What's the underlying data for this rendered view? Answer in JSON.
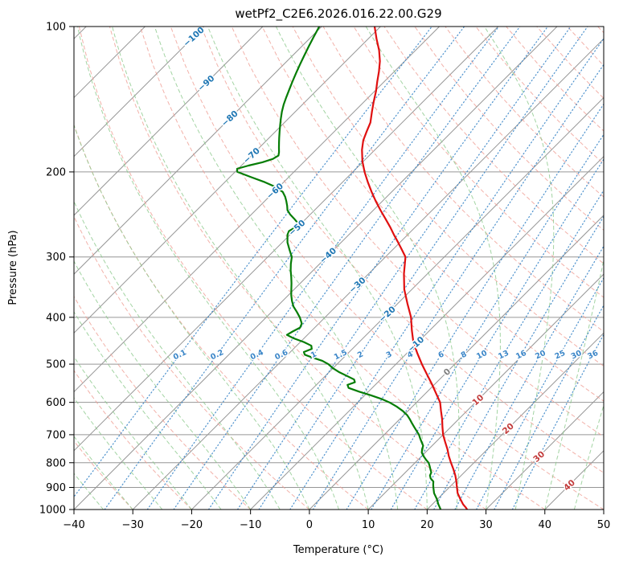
{
  "title": "wetPf2_C2E6.2026.016.22.00.G29",
  "axes": {
    "xlabel": "Temperature (°C)",
    "ylabel": "Pressure (hPa)",
    "x_ticks": [
      {
        "v": -40,
        "label": "−40"
      },
      {
        "v": -30,
        "label": "−30"
      },
      {
        "v": -20,
        "label": "−20"
      },
      {
        "v": -10,
        "label": "−10"
      },
      {
        "v": 0,
        "label": "0"
      },
      {
        "v": 10,
        "label": "10"
      },
      {
        "v": 20,
        "label": "20"
      },
      {
        "v": 30,
        "label": "30"
      },
      {
        "v": 40,
        "label": "40"
      },
      {
        "v": 50,
        "label": "50"
      }
    ],
    "p_ticks": [
      {
        "v": 100,
        "label": "100"
      },
      {
        "v": 200,
        "label": "200"
      },
      {
        "v": 300,
        "label": "300"
      },
      {
        "v": 400,
        "label": "400"
      },
      {
        "v": 500,
        "label": "500"
      },
      {
        "v": 600,
        "label": "600"
      },
      {
        "v": 700,
        "label": "700"
      },
      {
        "v": 800,
        "label": "800"
      },
      {
        "v": 900,
        "label": "900"
      },
      {
        "v": 1000,
        "label": "1000"
      }
    ]
  },
  "chart_data": {
    "type": "line",
    "subtype": "skewT-logP-sounding",
    "title": "wetPf2_C2E6.2026.016.22.00.G29",
    "xlabel": "Temperature (°C)",
    "ylabel": "Pressure (hPa)",
    "xlim": [
      -40,
      50
    ],
    "pressure_lim": [
      1000,
      100
    ],
    "pressure_scale": "log",
    "skew_degrees": 45,
    "series": [
      {
        "name": "temperature",
        "color": "#e01010",
        "style": "solid",
        "points_p_hPa_T_C": [
          [
            1000,
            26.8
          ],
          [
            990,
            26.2
          ],
          [
            975,
            25.2
          ],
          [
            950,
            23.8
          ],
          [
            925,
            22.4
          ],
          [
            900,
            21.3
          ],
          [
            875,
            20.2
          ],
          [
            850,
            19.0
          ],
          [
            825,
            17.6
          ],
          [
            800,
            16.1
          ],
          [
            775,
            14.6
          ],
          [
            750,
            13.2
          ],
          [
            725,
            11.6
          ],
          [
            700,
            10.0
          ],
          [
            675,
            8.6
          ],
          [
            650,
            7.2
          ],
          [
            625,
            5.6
          ],
          [
            600,
            4.0
          ],
          [
            575,
            1.8
          ],
          [
            550,
            -0.5
          ],
          [
            525,
            -3.0
          ],
          [
            500,
            -5.6
          ],
          [
            475,
            -8.2
          ],
          [
            450,
            -10.8
          ],
          [
            425,
            -13.1
          ],
          [
            400,
            -15.4
          ],
          [
            375,
            -18.3
          ],
          [
            350,
            -21.3
          ],
          [
            325,
            -24.0
          ],
          [
            300,
            -26.6
          ],
          [
            290,
            -28.4
          ],
          [
            280,
            -30.3
          ],
          [
            270,
            -32.3
          ],
          [
            260,
            -34.3
          ],
          [
            250,
            -36.5
          ],
          [
            240,
            -38.8
          ],
          [
            230,
            -41.1
          ],
          [
            220,
            -43.4
          ],
          [
            210,
            -45.7
          ],
          [
            200,
            -48.0
          ],
          [
            190,
            -50.2
          ],
          [
            180,
            -52.2
          ],
          [
            172,
            -53.6
          ],
          [
            165,
            -54.5
          ],
          [
            158,
            -55.4
          ],
          [
            150,
            -57.0
          ],
          [
            143,
            -58.4
          ],
          [
            136,
            -59.8
          ],
          [
            130,
            -61.2
          ],
          [
            124,
            -62.6
          ],
          [
            118,
            -64.2
          ],
          [
            112,
            -66.2
          ],
          [
            106,
            -68.6
          ],
          [
            100,
            -71.0
          ]
        ]
      },
      {
        "name": "dewpoint",
        "color": "#067d06",
        "style": "solid",
        "points_p_hPa_T_C": [
          [
            1000,
            22.3
          ],
          [
            990,
            21.8
          ],
          [
            975,
            21.0
          ],
          [
            950,
            19.8
          ],
          [
            925,
            18.4
          ],
          [
            900,
            17.3
          ],
          [
            888,
            16.8
          ],
          [
            875,
            16.3
          ],
          [
            862,
            15.3
          ],
          [
            850,
            14.7
          ],
          [
            838,
            14.4
          ],
          [
            825,
            13.7
          ],
          [
            812,
            13.0
          ],
          [
            800,
            12.3
          ],
          [
            788,
            11.3
          ],
          [
            775,
            10.3
          ],
          [
            762,
            9.4
          ],
          [
            750,
            8.9
          ],
          [
            738,
            8.5
          ],
          [
            725,
            7.6
          ],
          [
            712,
            6.7
          ],
          [
            700,
            5.9
          ],
          [
            688,
            4.9
          ],
          [
            675,
            3.8
          ],
          [
            662,
            2.7
          ],
          [
            650,
            1.7
          ],
          [
            638,
            0.6
          ],
          [
            625,
            -0.9
          ],
          [
            612,
            -2.7
          ],
          [
            600,
            -4.6
          ],
          [
            590,
            -6.6
          ],
          [
            580,
            -9.0
          ],
          [
            570,
            -11.6
          ],
          [
            560,
            -14.0
          ],
          [
            552,
            -14.7
          ],
          [
            545,
            -13.9
          ],
          [
            538,
            -14.5
          ],
          [
            530,
            -16.1
          ],
          [
            520,
            -18.2
          ],
          [
            510,
            -20.0
          ],
          [
            500,
            -21.5
          ],
          [
            492,
            -23.1
          ],
          [
            485,
            -25.2
          ],
          [
            478,
            -27.1
          ],
          [
            472,
            -27.7
          ],
          [
            465,
            -26.9
          ],
          [
            458,
            -27.5
          ],
          [
            450,
            -29.4
          ],
          [
            442,
            -31.8
          ],
          [
            435,
            -33.5
          ],
          [
            428,
            -33.1
          ],
          [
            420,
            -32.5
          ],
          [
            412,
            -32.9
          ],
          [
            405,
            -33.7
          ],
          [
            400,
            -34.3
          ],
          [
            390,
            -35.7
          ],
          [
            380,
            -37.2
          ],
          [
            370,
            -38.4
          ],
          [
            360,
            -39.5
          ],
          [
            350,
            -40.5
          ],
          [
            340,
            -41.5
          ],
          [
            330,
            -42.6
          ],
          [
            320,
            -43.8
          ],
          [
            310,
            -44.9
          ],
          [
            300,
            -45.9
          ],
          [
            290,
            -47.5
          ],
          [
            280,
            -49.1
          ],
          [
            270,
            -50.4
          ],
          [
            265,
            -50.8
          ],
          [
            260,
            -50.3
          ],
          [
            255,
            -50.7
          ],
          [
            250,
            -52.0
          ],
          [
            245,
            -53.4
          ],
          [
            240,
            -54.6
          ],
          [
            235,
            -55.4
          ],
          [
            230,
            -56.3
          ],
          [
            225,
            -57.3
          ],
          [
            220,
            -58.5
          ],
          [
            215,
            -60.5
          ],
          [
            210,
            -63.2
          ],
          [
            205,
            -66.4
          ],
          [
            200,
            -69.6
          ],
          [
            197,
            -70.2
          ],
          [
            194,
            -68.8
          ],
          [
            191,
            -67.0
          ],
          [
            188,
            -65.8
          ],
          [
            185,
            -65.4
          ],
          [
            182,
            -65.9
          ],
          [
            178,
            -66.7
          ],
          [
            174,
            -67.5
          ],
          [
            170,
            -68.3
          ],
          [
            165,
            -69.3
          ],
          [
            160,
            -70.3
          ],
          [
            155,
            -71.3
          ],
          [
            150,
            -72.3
          ],
          [
            145,
            -73.2
          ],
          [
            140,
            -74.0
          ],
          [
            135,
            -74.8
          ],
          [
            130,
            -75.6
          ],
          [
            125,
            -76.4
          ],
          [
            120,
            -77.2
          ],
          [
            115,
            -78.0
          ],
          [
            110,
            -78.8
          ],
          [
            105,
            -79.6
          ],
          [
            100,
            -80.4
          ]
        ]
      }
    ],
    "reference_lines": {
      "isotherms": {
        "color": "#969696",
        "style": "solid",
        "from": -130,
        "to": 50,
        "step": 10
      },
      "dry_adiabats": {
        "color": "#ef9d93",
        "style": "dashed",
        "theta_from": -40,
        "theta_to": 190,
        "step": 10
      },
      "moist_adiabats": {
        "color": "#8cc98c",
        "style": "dashed",
        "start_temp_from": -40,
        "start_temp_to": 50,
        "step": 5
      },
      "mixing_ratio_g_kg": {
        "color": "#3b86c8",
        "style": "dotted",
        "values": [
          0.1,
          0.2,
          0.4,
          0.6,
          1,
          1.5,
          2,
          3,
          4,
          6,
          8,
          10,
          13,
          16,
          20,
          25,
          30,
          36
        ]
      }
    },
    "isotherm_labels": [
      {
        "t": -100,
        "label": "−100",
        "color": "#1f77b4"
      },
      {
        "t": -90,
        "label": "−90",
        "color": "#1f77b4"
      },
      {
        "t": -80,
        "label": "−80",
        "color": "#1f77b4"
      },
      {
        "t": -70,
        "label": "−70",
        "color": "#1f77b4"
      },
      {
        "t": -60,
        "label": "−60",
        "color": "#1f77b4"
      },
      {
        "t": -50,
        "label": "−50",
        "color": "#1f77b4"
      },
      {
        "t": -40,
        "label": "−40",
        "color": "#1f77b4"
      },
      {
        "t": -30,
        "label": "−30",
        "color": "#1f77b4"
      },
      {
        "t": -20,
        "label": "−20",
        "color": "#1f77b4"
      },
      {
        "t": -10,
        "label": "−10",
        "color": "#1f77b4"
      },
      {
        "t": 0,
        "label": "0",
        "color": "#7f7f7f"
      },
      {
        "t": 10,
        "label": "10",
        "color": "#c23b3b"
      },
      {
        "t": 20,
        "label": "20",
        "color": "#c23b3b"
      },
      {
        "t": 30,
        "label": "30",
        "color": "#c23b3b"
      },
      {
        "t": 40,
        "label": "40",
        "color": "#c23b3b"
      }
    ]
  }
}
